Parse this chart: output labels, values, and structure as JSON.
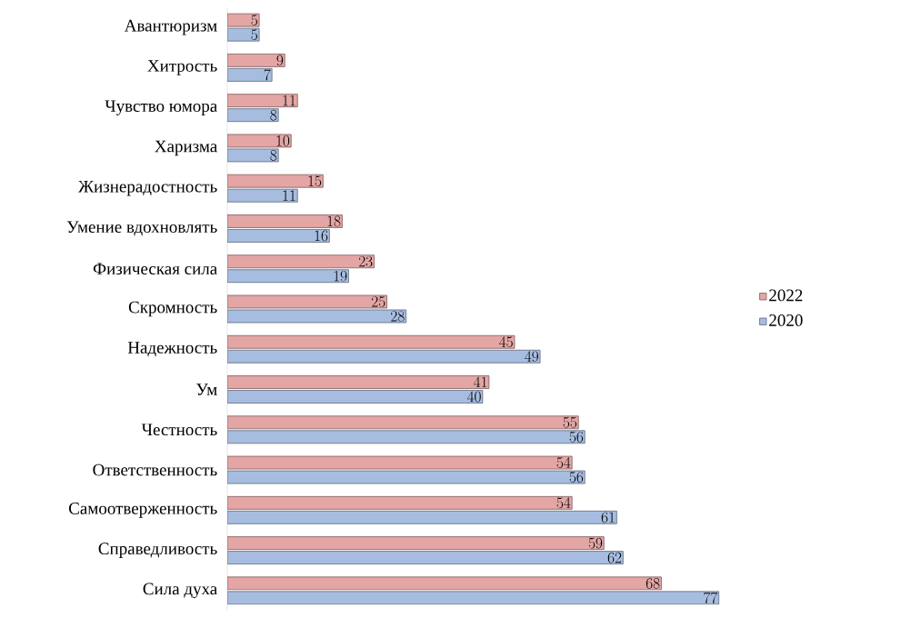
{
  "chart_data": {
    "type": "bar",
    "orientation": "horizontal",
    "data_labels": true,
    "legend": "right",
    "categories": [
      "Авантюризм",
      "Хитрость",
      "Чувство юмора",
      "Харизма",
      "Жизнерадостность",
      "Умение вдохновлять",
      "Физическая сила",
      "Скромность",
      "Надежность",
      "Ум",
      "Честность",
      "Ответственность",
      "Самоотверженность",
      "Справедливость",
      "Сила духа"
    ],
    "series": [
      {
        "name": "2022",
        "color": "#e3a6a5",
        "values": [
          5,
          9,
          11,
          10,
          15,
          18,
          23,
          25,
          45,
          41,
          55,
          54,
          54,
          59,
          68
        ]
      },
      {
        "name": "2020",
        "color": "#a7bde0",
        "values": [
          5,
          7,
          8,
          8,
          11,
          16,
          19,
          28,
          49,
          40,
          56,
          56,
          61,
          62,
          77
        ]
      }
    ]
  }
}
